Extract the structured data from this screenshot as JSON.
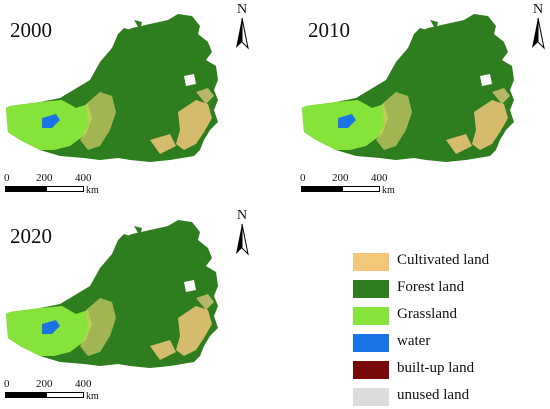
{
  "panels": [
    {
      "year": "2000"
    },
    {
      "year": "2010"
    },
    {
      "year": "2020"
    }
  ],
  "north_label": "N",
  "scale": {
    "ticks": [
      "0",
      "200",
      "400"
    ],
    "unit": "km"
  },
  "legend": [
    {
      "label": "Cultivated land",
      "color": "#f2c77a"
    },
    {
      "label": "Forest land",
      "color": "#2e7d1e"
    },
    {
      "label": "Grassland",
      "color": "#86e33a"
    },
    {
      "label": "water",
      "color": "#1a74e6"
    },
    {
      "label": "built-up land",
      "color": "#7a0a0a"
    },
    {
      "label": "unused land",
      "color": "#dcdcdc"
    }
  ]
}
